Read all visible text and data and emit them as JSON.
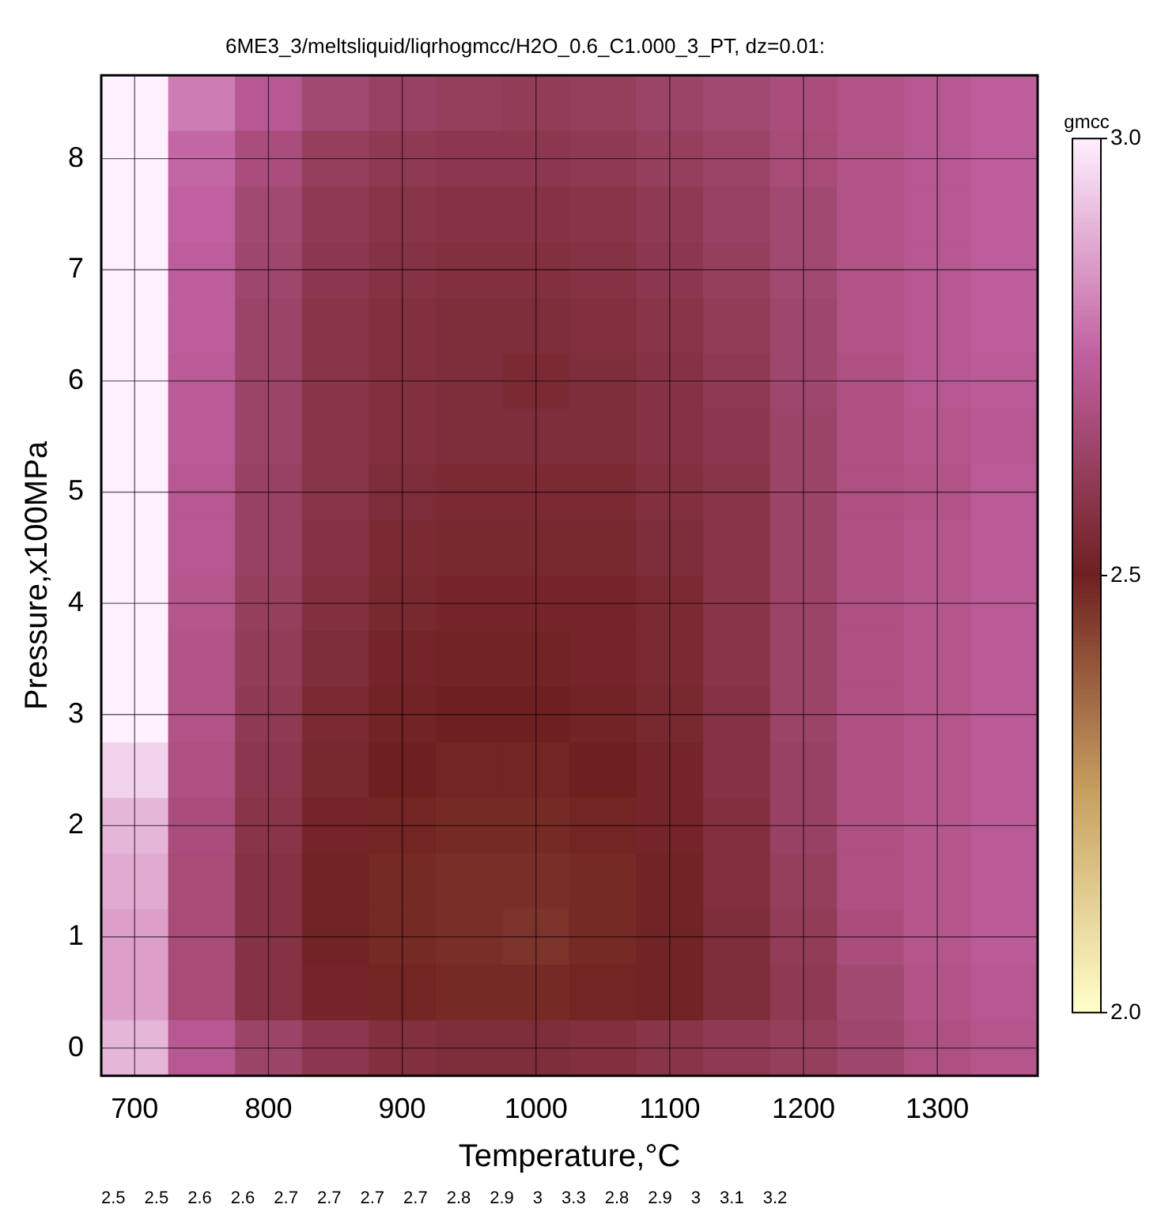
{
  "chart_data": {
    "type": "heatmap",
    "title": "6ME3_3/meltsliquid/liqrhogmcc/H2O_0.6_C1.000_3_PT, dz=0.01:",
    "xlabel": "Temperature,°C",
    "ylabel": "Pressure,x100MPa",
    "clabel": "gmcc",
    "clim": [
      2.0,
      3.0
    ],
    "cticks": [
      {
        "value": 2.0,
        "label": "2.0"
      },
      {
        "value": 2.5,
        "label": "2.5"
      },
      {
        "value": 3.0,
        "label": "3.0"
      }
    ],
    "grid": true,
    "categories": [
      "700",
      null,
      "800",
      null,
      "900",
      null,
      "1000",
      null,
      "1100",
      null,
      "1200",
      null,
      "1300",
      null
    ],
    "y_categories": [
      null,
      "8",
      null,
      "7",
      null,
      "6",
      null,
      "5",
      null,
      "4",
      null,
      "3",
      null,
      "2",
      null,
      "1",
      null,
      "0"
    ],
    "cells": [
      [
        3.1,
        2.8,
        2.72,
        2.66,
        2.63,
        2.62,
        2.61,
        2.62,
        2.64,
        2.66,
        2.68,
        2.7,
        2.72,
        2.74
      ],
      [
        3.1,
        2.76,
        2.68,
        2.62,
        2.6,
        2.59,
        2.59,
        2.6,
        2.62,
        2.64,
        2.67,
        2.7,
        2.72,
        2.74
      ],
      [
        3.1,
        2.75,
        2.66,
        2.6,
        2.58,
        2.57,
        2.57,
        2.58,
        2.6,
        2.63,
        2.66,
        2.7,
        2.72,
        2.74
      ],
      [
        3.15,
        2.74,
        2.65,
        2.59,
        2.57,
        2.56,
        2.56,
        2.57,
        2.59,
        2.62,
        2.66,
        2.7,
        2.72,
        2.74
      ],
      [
        3.2,
        2.74,
        2.64,
        2.58,
        2.56,
        2.55,
        2.55,
        2.56,
        2.58,
        2.61,
        2.65,
        2.7,
        2.72,
        2.74
      ],
      [
        3.2,
        2.73,
        2.64,
        2.58,
        2.56,
        2.55,
        2.54,
        2.55,
        2.57,
        2.6,
        2.65,
        2.69,
        2.72,
        2.73
      ],
      [
        3.3,
        2.73,
        2.64,
        2.58,
        2.56,
        2.55,
        2.55,
        2.55,
        2.57,
        2.59,
        2.64,
        2.69,
        2.71,
        2.72
      ],
      [
        3.4,
        2.72,
        2.63,
        2.58,
        2.55,
        2.54,
        2.54,
        2.54,
        2.56,
        2.58,
        2.64,
        2.69,
        2.7,
        2.73
      ],
      [
        3.4,
        2.72,
        2.63,
        2.57,
        2.54,
        2.53,
        2.53,
        2.53,
        2.55,
        2.58,
        2.64,
        2.69,
        2.71,
        2.73
      ],
      [
        3.3,
        2.71,
        2.62,
        2.56,
        2.53,
        2.52,
        2.52,
        2.52,
        2.54,
        2.58,
        2.64,
        2.69,
        2.71,
        2.73
      ],
      [
        3.1,
        2.7,
        2.61,
        2.55,
        2.52,
        2.51,
        2.51,
        2.52,
        2.54,
        2.58,
        2.64,
        2.69,
        2.71,
        2.73
      ],
      [
        3.0,
        2.7,
        2.6,
        2.54,
        2.51,
        2.5,
        2.5,
        2.51,
        2.53,
        2.57,
        2.64,
        2.69,
        2.71,
        2.73
      ],
      [
        2.95,
        2.69,
        2.59,
        2.53,
        2.5,
        2.49,
        2.49,
        2.5,
        2.52,
        2.57,
        2.63,
        2.69,
        2.71,
        2.73
      ],
      [
        2.9,
        2.68,
        2.58,
        2.52,
        2.49,
        2.48,
        2.48,
        2.49,
        2.52,
        2.56,
        2.63,
        2.69,
        2.71,
        2.73
      ],
      [
        2.88,
        2.67,
        2.57,
        2.51,
        2.48,
        2.47,
        2.47,
        2.48,
        2.51,
        2.56,
        2.62,
        2.69,
        2.71,
        2.73
      ],
      [
        2.86,
        2.67,
        2.57,
        2.51,
        2.48,
        2.47,
        2.46,
        2.48,
        2.51,
        2.55,
        2.61,
        2.68,
        2.71,
        2.73
      ],
      [
        2.86,
        2.67,
        2.57,
        2.52,
        2.49,
        2.48,
        2.48,
        2.49,
        2.51,
        2.55,
        2.6,
        2.66,
        2.7,
        2.72
      ],
      [
        2.9,
        2.72,
        2.64,
        2.59,
        2.56,
        2.55,
        2.55,
        2.56,
        2.58,
        2.6,
        2.62,
        2.65,
        2.69,
        2.71
      ]
    ],
    "annotations": [
      "2.5",
      "2.5",
      "2.6",
      "2.6",
      "2.7",
      "2.7",
      "2.7",
      "2.7",
      "2.8",
      "2.9",
      "3",
      "3.3",
      "2.8",
      "2.9",
      "3",
      "3.1",
      "3.2"
    ]
  }
}
